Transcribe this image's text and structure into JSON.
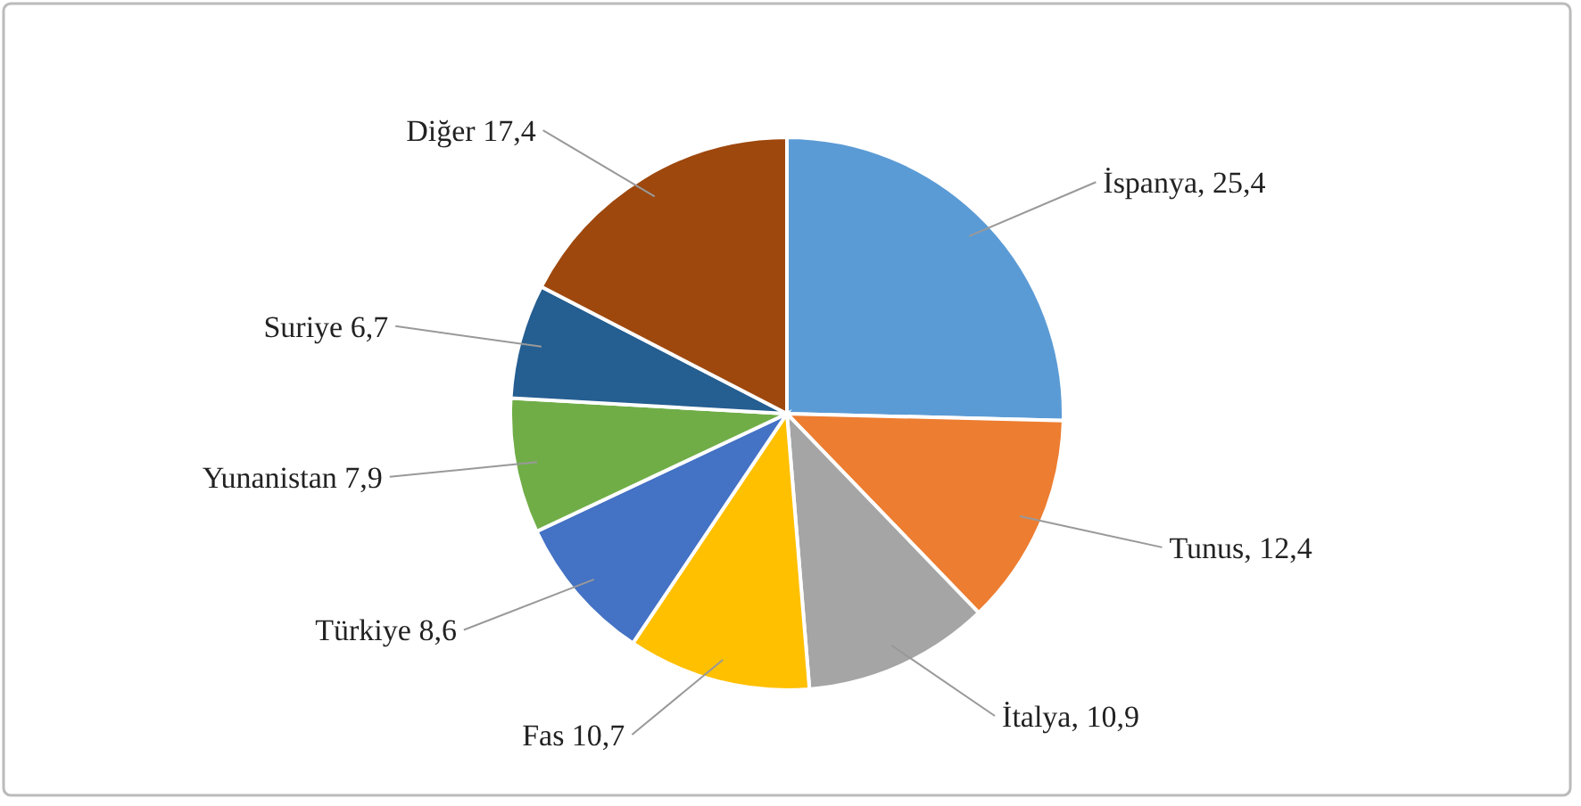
{
  "chart_data": {
    "type": "pie",
    "categories": [
      "İspanya",
      "Tunus",
      "İtalya",
      "Fas",
      "Türkiye",
      "Yunanistan",
      "Suriye",
      "Diğer"
    ],
    "values": [
      25.4,
      12.4,
      10.9,
      10.7,
      8.6,
      7.9,
      6.7,
      17.4
    ],
    "value_labels": [
      "25,4",
      "12,4",
      "10,9",
      "10,7",
      "8,6",
      "7,9",
      "6,7",
      "17,4"
    ],
    "colors": [
      "#5b9bd5",
      "#ed7d31",
      "#a5a5a5",
      "#ffc000",
      "#4472c4",
      "#70ad47",
      "#255e91",
      "#9e480e"
    ],
    "legend": false
  }
}
